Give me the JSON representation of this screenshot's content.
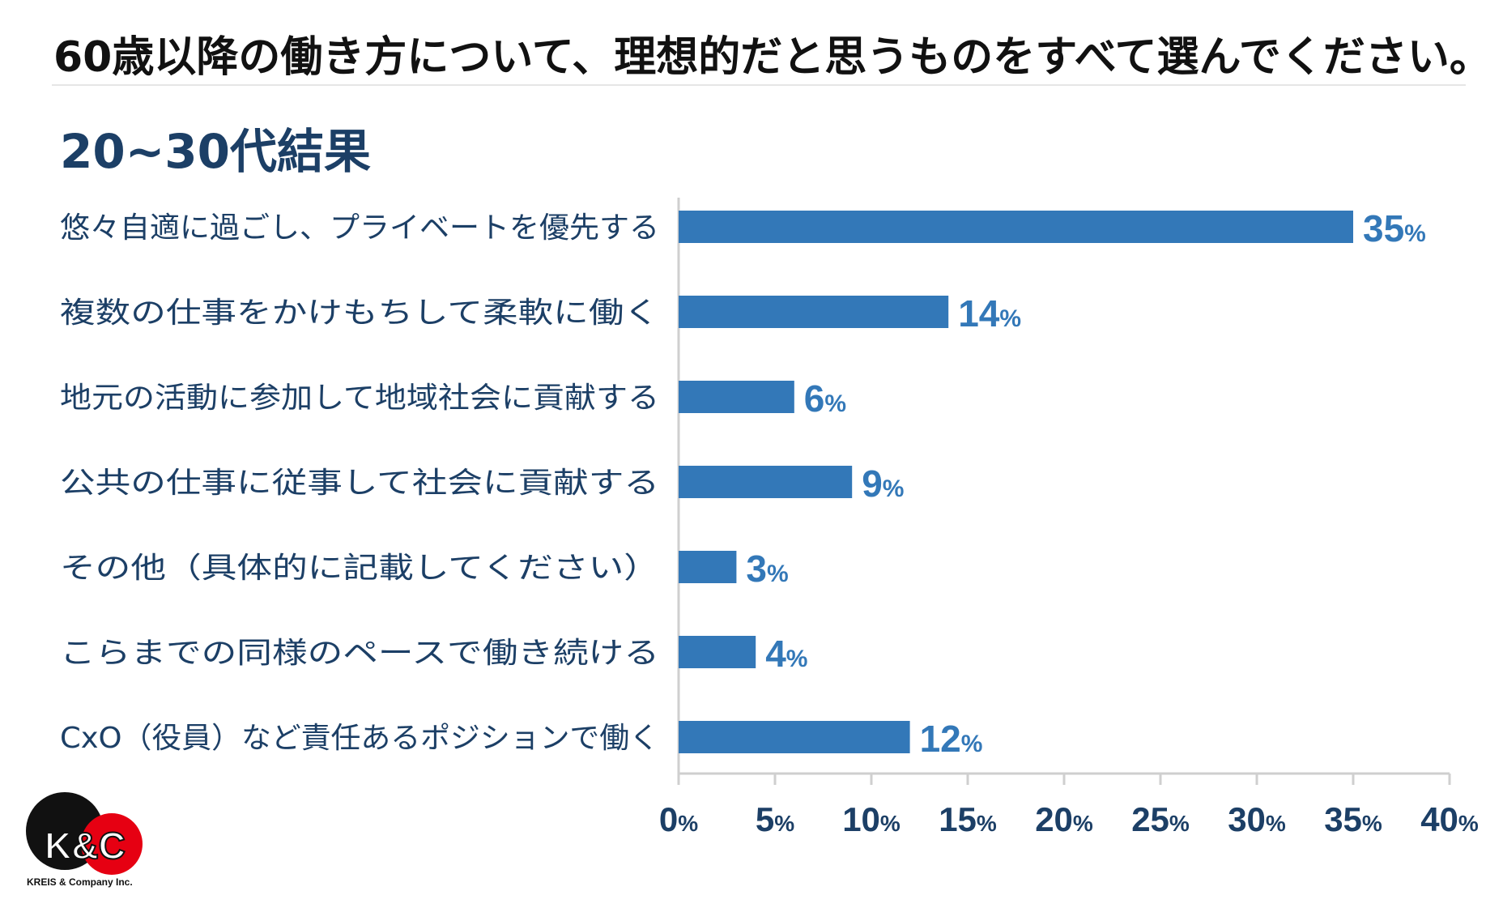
{
  "title": "60歳以降の働き方について、理想的だと思うものをすべて選んでください。",
  "subtitle": "20~30代結果",
  "logo": {
    "text": "KREIS & Company Inc.",
    "mark": "K&C"
  },
  "colors": {
    "bar": "#3378b8",
    "axis": "#cfcfcf",
    "label": "#1c3f66",
    "value": "#3378b8",
    "logo_red": "#e60012"
  },
  "chart_data": {
    "type": "bar",
    "orientation": "horizontal",
    "categories": [
      "悠々自適に過ごし、プライベートを優先する",
      "複数の仕事をかけもちして柔軟に働く",
      "地元の活動に参加して地域社会に貢献する",
      "公共の仕事に従事して社会に貢献する",
      "その他（具体的に記載してください）",
      "こらまでの同様のペースで働き続ける",
      "CxO（役員）など責任あるポジションで働く"
    ],
    "values": [
      35,
      14,
      6,
      9,
      3,
      4,
      12
    ],
    "value_unit": "%",
    "xlim": [
      0,
      40
    ],
    "xticks": [
      0,
      5,
      10,
      15,
      20,
      25,
      30,
      35,
      40
    ],
    "grid": false
  }
}
